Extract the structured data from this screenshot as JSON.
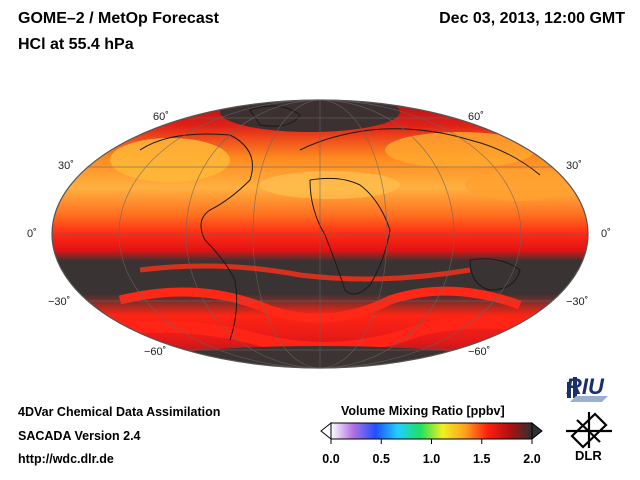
{
  "header": {
    "title_line1": "GOME–2 / MetOp Forecast",
    "title_line2": "HCl at 55.4 hPa",
    "datetime": "Dec 03, 2013, 12:00 GMT"
  },
  "map": {
    "latitude_labels": [
      {
        "lat": 60,
        "text": "60˚"
      },
      {
        "lat": 30,
        "text": "30˚"
      },
      {
        "lat": 0,
        "text": "0˚"
      },
      {
        "lat": -30,
        "text": "−30˚"
      },
      {
        "lat": -60,
        "text": "−60˚"
      }
    ],
    "projection": "mollweide"
  },
  "colorbar": {
    "title": "Volume Mixing Ratio [ppbv]",
    "min": 0.0,
    "max": 2.0,
    "ticks": [
      "0.0",
      "0.5",
      "1.0",
      "1.5",
      "2.0"
    ],
    "colors": [
      "#ffffff",
      "#b070e0",
      "#2050ff",
      "#20d0ff",
      "#20e060",
      "#f0f020",
      "#ffa020",
      "#ff2010",
      "#b01010",
      "#303030"
    ]
  },
  "footer": {
    "line1": "4DVar Chemical Data Assimilation",
    "line2": "SACADA Version 2.4",
    "line3": "http://wdc.dlr.de"
  },
  "logos": {
    "riu": "RIU",
    "dlr": "DLR"
  }
}
